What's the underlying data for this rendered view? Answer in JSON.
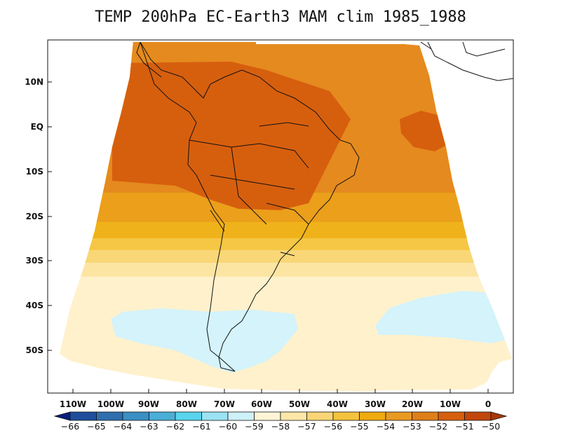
{
  "title": "TEMP 200hPa EC-Earth3 MAM clim 1985_1988",
  "lat_ticks": [
    "10N",
    "EQ",
    "10S",
    "20S",
    "30S",
    "40S",
    "50S"
  ],
  "lon_ticks": [
    "110W",
    "100W",
    "90W",
    "80W",
    "70W",
    "60W",
    "50W",
    "40W",
    "30W",
    "20W",
    "10W",
    "0"
  ],
  "colorbar": {
    "labels": [
      "-66",
      "-65",
      "-64",
      "-63",
      "-62",
      "-61",
      "-60",
      "-59",
      "-58",
      "-57",
      "-56",
      "-55",
      "-54",
      "-53",
      "-52",
      "-51",
      "-50"
    ],
    "colors": [
      "#0a1f7a",
      "#1f4f9b",
      "#2f6fae",
      "#3a8fc4",
      "#4aaed6",
      "#58d4ec",
      "#9ae3f4",
      "#cdf1f9",
      "#fff5d6",
      "#fde7a8",
      "#f9d575",
      "#f5c23e",
      "#efab10",
      "#e89a23",
      "#df7f1a",
      "#d65f0e",
      "#c2460b",
      "#a83a08"
    ]
  },
  "map": {
    "bands": [
      {
        "level": "-51 to -52",
        "color": "#d65f0e"
      },
      {
        "level": "-52 to -53",
        "color": "#e58a1e"
      },
      {
        "level": "-53 to -54",
        "color": "#eb9f1b"
      },
      {
        "level": "-54 to -55",
        "color": "#f0b21a"
      },
      {
        "level": "-55 to -56",
        "color": "#f5c745"
      },
      {
        "level": "-56 to -57",
        "color": "#f9d777"
      },
      {
        "level": "-57 to -58",
        "color": "#fce5a3"
      },
      {
        "level": "-58 to -59",
        "color": "#fff1cc"
      },
      {
        "level": "-59 to -60",
        "color": "#d4f3fb"
      }
    ]
  }
}
